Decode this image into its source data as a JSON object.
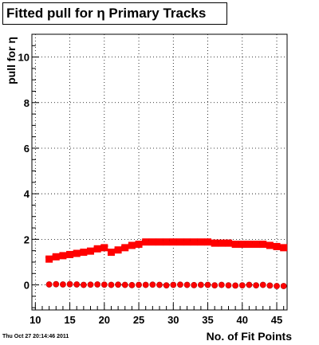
{
  "title": "Fitted pull for  η Primary Tracks",
  "timestamp": "Thu Oct 27 20:14:46 2011",
  "chart_data": {
    "type": "scatter",
    "title": "Fitted pull for  η Primary Tracks",
    "xlabel": "No. of Fit Points",
    "ylabel": "pull for η",
    "xlim": [
      9.5,
      46.5
    ],
    "ylim": [
      -1.1,
      11.0
    ],
    "x_ticks": [
      10,
      15,
      20,
      25,
      30,
      35,
      40,
      45
    ],
    "y_ticks": [
      0,
      2,
      4,
      6,
      8,
      10
    ],
    "grid": true,
    "legend": "none",
    "colors": {
      "primary": "#ff0000",
      "marker_edge": "#000000",
      "axis": "#000000"
    },
    "x": [
      12,
      13,
      14,
      15,
      16,
      17,
      18,
      19,
      20,
      21,
      22,
      23,
      24,
      25,
      26,
      27,
      28,
      29,
      30,
      31,
      32,
      33,
      34,
      35,
      36,
      37,
      38,
      39,
      40,
      41,
      42,
      43,
      44,
      45,
      46
    ],
    "series": [
      {
        "marker": "square",
        "values": [
          1.15,
          1.25,
          1.3,
          1.35,
          1.4,
          1.45,
          1.5,
          1.6,
          1.65,
          1.45,
          1.55,
          1.65,
          1.75,
          1.8,
          1.9,
          1.9,
          1.9,
          1.9,
          1.9,
          1.9,
          1.9,
          1.9,
          1.9,
          1.9,
          1.85,
          1.85,
          1.85,
          1.8,
          1.8,
          1.8,
          1.8,
          1.8,
          1.75,
          1.7,
          1.65
        ]
      },
      {
        "marker": "circle",
        "values": [
          0.02,
          0.03,
          0.02,
          0.03,
          0.02,
          0.0,
          0.01,
          0.02,
          0.01,
          0.0,
          0.01,
          0.0,
          -0.01,
          0.0,
          0.0,
          0.01,
          0.0,
          -0.02,
          0.0,
          0.01,
          0.0,
          -0.01,
          0.0,
          0.0,
          -0.02,
          0.0,
          -0.02,
          -0.03,
          -0.02,
          0.0,
          -0.02,
          0.0,
          -0.03,
          -0.05,
          -0.05
        ]
      }
    ]
  }
}
